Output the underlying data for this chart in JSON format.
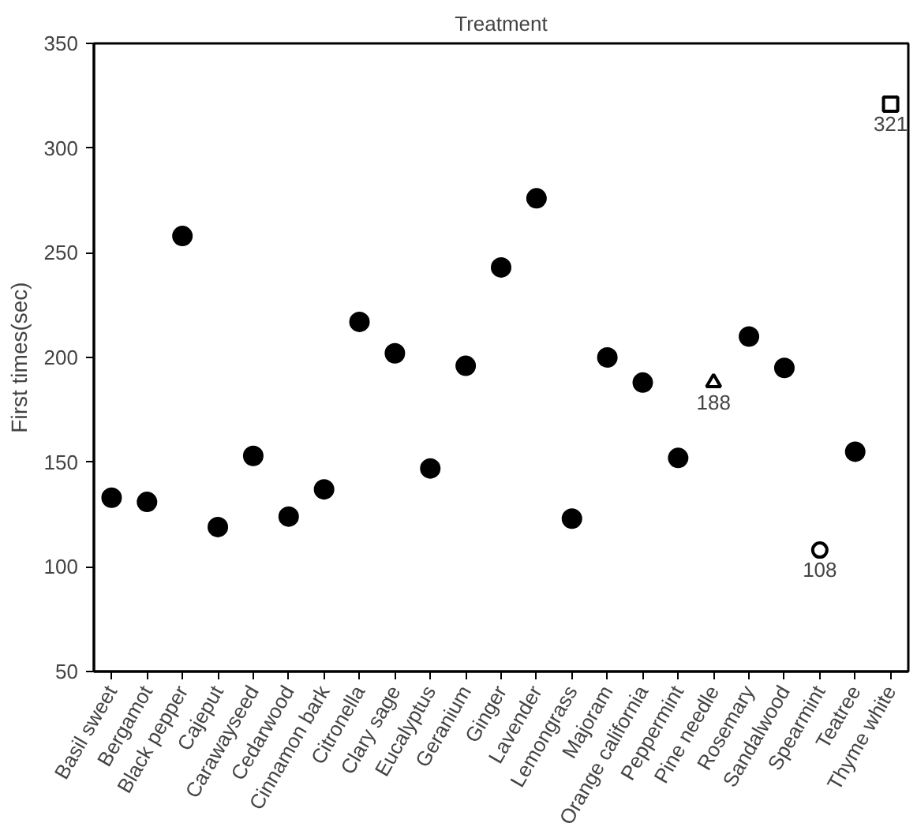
{
  "chart_data": {
    "type": "scatter",
    "title": "Treatment",
    "ylabel": "First times(sec)",
    "categories": [
      "Basil sweet",
      "Bergamot",
      "Black pepper",
      "Cajeput",
      "Carawayseed",
      "Cedarwood",
      "Cinnamon bark",
      "Citronella",
      "Clary sage",
      "Eucalyptus",
      "Geranium",
      "Ginger",
      "Lavender",
      "Lemongrass",
      "Majoram",
      "Orange california",
      "Peppermint",
      "Pine needle",
      "Rosemary",
      "Sandalwood",
      "Spearmint",
      "Teatree",
      "Thyme white"
    ],
    "series": [
      {
        "color": "#000000",
        "marker": "circle",
        "values": [
          133,
          131,
          258,
          119,
          153,
          124,
          137,
          217,
          202,
          147,
          196,
          243,
          276,
          123,
          200,
          188,
          152,
          null,
          210,
          195,
          null,
          155,
          null
        ]
      },
      {
        "color": "#000000",
        "marker": "triangle",
        "values": [
          null,
          null,
          null,
          null,
          null,
          null,
          null,
          null,
          null,
          null,
          null,
          null,
          null,
          null,
          null,
          null,
          null,
          188,
          null,
          null,
          null,
          null,
          null
        ],
        "value_labels": [
          null,
          null,
          null,
          null,
          null,
          null,
          null,
          null,
          null,
          null,
          null,
          null,
          null,
          null,
          null,
          null,
          null,
          "188",
          null,
          null,
          null,
          null,
          null
        ]
      },
      {
        "color": "#000000",
        "marker": "circle",
        "values": [
          null,
          null,
          null,
          null,
          null,
          null,
          null,
          null,
          null,
          null,
          null,
          null,
          null,
          null,
          null,
          null,
          null,
          null,
          null,
          null,
          108,
          null,
          null
        ],
        "value_labels": [
          null,
          null,
          null,
          null,
          null,
          null,
          null,
          null,
          null,
          null,
          null,
          null,
          null,
          null,
          null,
          null,
          null,
          null,
          null,
          null,
          "108",
          null,
          null
        ]
      },
      {
        "color": "#000000",
        "marker": "square",
        "values": [
          null,
          null,
          null,
          null,
          null,
          null,
          null,
          null,
          null,
          null,
          null,
          null,
          null,
          null,
          null,
          null,
          null,
          null,
          null,
          null,
          null,
          null,
          321
        ],
        "value_labels": [
          null,
          null,
          null,
          null,
          null,
          null,
          null,
          null,
          null,
          null,
          null,
          null,
          null,
          null,
          null,
          null,
          null,
          null,
          null,
          null,
          null,
          null,
          "321"
        ]
      }
    ],
    "ylim": [
      50,
      350
    ],
    "yticks": [
      50,
      100,
      150,
      200,
      250,
      300,
      350
    ],
    "grid": false
  }
}
